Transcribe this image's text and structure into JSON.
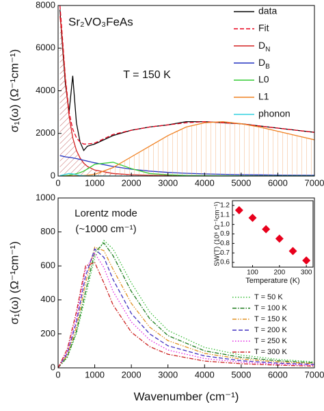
{
  "chart_data": [
    {
      "type": "line",
      "ylabel": "σ₁(ω) (Ω⁻¹cm⁻¹)",
      "annotations": [
        "Sr₂VO₃FeAs",
        "T = 150 K"
      ],
      "xlim": [
        0,
        7000
      ],
      "xticks": [
        0,
        1000,
        2000,
        3000,
        4000,
        5000,
        6000,
        7000
      ],
      "ylim": [
        0,
        8000
      ],
      "yticks": [
        0,
        2000,
        4000,
        6000,
        8000
      ],
      "x": [
        50,
        100,
        200,
        300,
        400,
        500,
        600,
        700,
        800,
        1000,
        1500,
        2000,
        2500,
        3000,
        3500,
        4000,
        4500,
        5000,
        5500,
        6000,
        6500,
        7000
      ],
      "series": [
        {
          "name": "data",
          "color": "#000000",
          "dash": "solid",
          "values": [
            7800,
            6500,
            4300,
            3000,
            4700,
            2500,
            1600,
            1200,
            1400,
            1500,
            1900,
            2150,
            2300,
            2400,
            2550,
            2550,
            2500,
            2450,
            2350,
            2250,
            2150,
            2050
          ]
        },
        {
          "name": "Fit",
          "color": "#e8001c",
          "dash": "dashed",
          "values": [
            8000,
            6900,
            4600,
            3000,
            2200,
            1800,
            1600,
            1500,
            1500,
            1550,
            1950,
            2150,
            2300,
            2400,
            2500,
            2550,
            2500,
            2450,
            2350,
            2250,
            2150,
            2050
          ]
        },
        {
          "name": "DN",
          "color": "#d42020",
          "dash": "solid",
          "hatch": "diagonal",
          "values": [
            7500,
            6700,
            4500,
            2800,
            1800,
            1200,
            850,
            600,
            450,
            280,
            120,
            60,
            35,
            25,
            15,
            10,
            8,
            6,
            5,
            4,
            3,
            3
          ]
        },
        {
          "name": "DB",
          "color": "#2030c0",
          "dash": "solid",
          "values": [
            950,
            940,
            900,
            880,
            850,
            820,
            780,
            740,
            700,
            620,
            450,
            320,
            230,
            170,
            130,
            100,
            80,
            65,
            55,
            45,
            40,
            35
          ]
        },
        {
          "name": "L0",
          "color": "#33cc33",
          "dash": "solid",
          "values": [
            0,
            5,
            20,
            40,
            70,
            110,
            160,
            230,
            330,
            550,
            650,
            350,
            120,
            60,
            30,
            20,
            15,
            10,
            8,
            6,
            5,
            4
          ]
        },
        {
          "name": "L1",
          "color": "#f08020",
          "dash": "solid",
          "hatch": "vertical",
          "values": [
            0,
            0,
            0,
            5,
            10,
            15,
            20,
            30,
            40,
            80,
            400,
            900,
            1400,
            1900,
            2300,
            2500,
            2550,
            2450,
            2300,
            2100,
            1900,
            1700
          ]
        },
        {
          "name": "phonon",
          "color": "#30d0e0",
          "dash": "solid",
          "values": [
            20,
            40,
            80,
            120,
            100,
            60,
            30,
            15,
            10,
            5,
            3,
            2,
            1,
            1,
            0,
            0,
            0,
            0,
            0,
            0,
            0,
            0
          ]
        }
      ]
    },
    {
      "type": "line",
      "ylabel": "σ₁(ω) (Ω⁻¹cm⁻¹)",
      "xlabel": "Wavenumber (cm⁻¹)",
      "annotations": [
        "Lorentz mode",
        "(~1000 cm⁻¹)"
      ],
      "xlim": [
        0,
        7000
      ],
      "xticks": [
        0,
        1000,
        2000,
        3000,
        4000,
        5000,
        6000,
        7000
      ],
      "ylim": [
        0,
        1000
      ],
      "yticks": [
        0,
        200,
        400,
        600,
        800,
        1000
      ],
      "x": [
        0,
        250,
        500,
        750,
        1000,
        1250,
        1500,
        2000,
        2500,
        3000,
        4000,
        5000,
        6000,
        7000
      ],
      "series": [
        {
          "name": "T =   50 K",
          "color": "#33bb33",
          "dash": "dotted",
          "values": [
            0,
            60,
            200,
            420,
            650,
            750,
            700,
            500,
            330,
            220,
            120,
            75,
            50,
            35
          ]
        },
        {
          "name": "T = 100 K",
          "color": "#1a7a1a",
          "dash": "dashdot",
          "values": [
            0,
            65,
            215,
            450,
            680,
            735,
            660,
            450,
            290,
            190,
            100,
            62,
            42,
            30
          ]
        },
        {
          "name": "T = 150 K",
          "color": "#e09020",
          "dash": "dashdotdot",
          "values": [
            0,
            75,
            240,
            500,
            710,
            690,
            580,
            380,
            240,
            160,
            85,
            52,
            35,
            25
          ]
        },
        {
          "name": "T = 200 K",
          "color": "#4030c0",
          "dash": "dashed",
          "values": [
            0,
            85,
            270,
            540,
            700,
            650,
            520,
            320,
            200,
            130,
            70,
            42,
            28,
            20
          ]
        },
        {
          "name": "T = 250 K",
          "color": "#e020e0",
          "dash": "dotted",
          "values": [
            0,
            95,
            300,
            580,
            675,
            590,
            450,
            270,
            165,
            105,
            55,
            33,
            22,
            15
          ]
        },
        {
          "name": "T = 300 K",
          "color": "#cc2020",
          "dash": "dashdot",
          "values": [
            0,
            110,
            330,
            600,
            620,
            500,
            370,
            210,
            125,
            80,
            40,
            24,
            16,
            10
          ]
        }
      ]
    },
    {
      "type": "scatter",
      "xlabel": "Temperature (K)",
      "ylabel": "SW(T) (10⁶ Ω⁻¹cm⁻¹)",
      "xlim": [
        25,
        325
      ],
      "xticks": [
        100,
        200,
        300
      ],
      "ylim": [
        0.55,
        1.25
      ],
      "yticks": [
        0.6,
        0.7,
        0.8,
        0.9,
        {
          "value": 1,
          "label": "1.0"
        },
        1.1,
        1.2
      ],
      "x": [
        50,
        100,
        150,
        200,
        250,
        300
      ],
      "color": "#e8001c",
      "values": [
        1.15,
        1.07,
        0.95,
        0.85,
        0.72,
        0.62
      ]
    }
  ]
}
